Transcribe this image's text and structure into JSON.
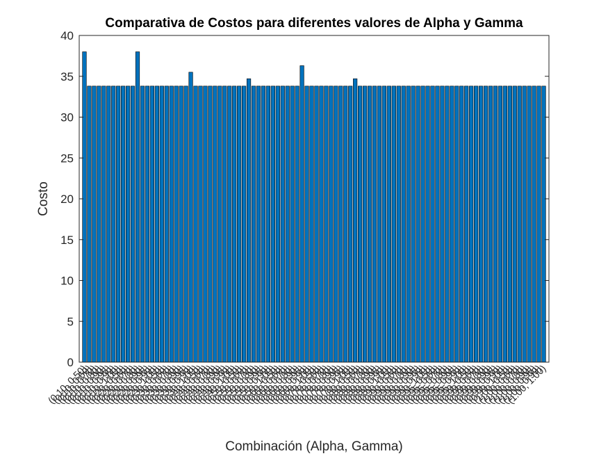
{
  "chart_data": {
    "type": "bar",
    "title": "Comparativa de Costos para diferentes valores de Alpha y Gamma",
    "xlabel": "Combinación (Alpha, Gamma)",
    "ylabel": "Costo",
    "ylim": [
      0,
      40
    ],
    "yticks": [
      0,
      5,
      10,
      15,
      20,
      25,
      30,
      35,
      40
    ],
    "grid": false,
    "bar_color": "#0072BD",
    "bar_edge_color": "#000000",
    "categories": [
      "(0.10, 0.50)",
      "(0.10, 0.60)",
      "(0.10, 0.70)",
      "(0.10, 0.80)",
      "(0.10, 0.90)",
      "(0.10, 0.95)",
      "(0.10, 0.99)",
      "(0.10, 1.00)",
      "(0.20, 0.50)",
      "(0.20, 0.60)",
      "(0.20, 0.70)",
      "(0.20, 0.80)",
      "(0.20, 0.90)",
      "(0.20, 0.95)",
      "(0.20, 0.99)",
      "(0.20, 1.00)",
      "(0.30, 0.50)",
      "(0.30, 0.60)",
      "(0.30, 0.70)",
      "(0.30, 0.80)",
      "(0.30, 0.90)",
      "(0.30, 0.95)",
      "(0.30, 0.99)",
      "(0.30, 1.00)",
      "(0.40, 0.50)",
      "(0.40, 0.60)",
      "(0.40, 0.70)",
      "(0.40, 0.80)",
      "(0.40, 0.90)",
      "(0.40, 0.95)",
      "(0.40, 0.99)",
      "(0.40, 1.00)",
      "(0.50, 0.50)",
      "(0.50, 0.60)",
      "(0.50, 0.70)",
      "(0.50, 0.80)",
      "(0.50, 0.90)",
      "(0.50, 0.95)",
      "(0.50, 0.99)",
      "(0.50, 1.00)",
      "(0.60, 0.50)",
      "(0.60, 0.60)",
      "(0.60, 0.70)",
      "(0.60, 0.80)",
      "(0.60, 0.90)",
      "(0.60, 0.95)",
      "(0.60, 0.99)",
      "(0.60, 1.00)",
      "(0.70, 0.50)",
      "(0.70, 0.60)",
      "(0.70, 0.70)",
      "(0.70, 0.80)",
      "(0.70, 0.90)",
      "(0.70, 0.95)",
      "(0.70, 0.99)",
      "(0.70, 1.00)",
      "(0.80, 0.50)",
      "(0.80, 0.60)",
      "(0.80, 0.70)",
      "(0.80, 0.80)",
      "(0.80, 0.90)",
      "(0.80, 0.95)",
      "(0.80, 0.99)",
      "(0.80, 1.00)",
      "(0.90, 0.50)",
      "(0.90, 0.60)",
      "(0.90, 0.70)",
      "(0.90, 0.80)",
      "(0.90, 0.90)",
      "(0.90, 0.95)",
      "(0.90, 0.99)",
      "(0.90, 1.00)",
      "(0.95, 0.50)",
      "(0.95, 0.60)",
      "(0.95, 0.70)",
      "(0.95, 0.80)",
      "(0.95, 0.90)",
      "(0.95, 0.95)",
      "(0.95, 0.99)",
      "(0.95, 1.00)",
      "(0.99, 0.50)",
      "(0.99, 0.60)",
      "(0.99, 0.70)",
      "(0.99, 0.80)",
      "(0.99, 0.90)",
      "(0.99, 0.95)",
      "(0.99, 0.99)",
      "(0.99, 1.00)",
      "(1.00, 0.50)",
      "(1.00, 0.60)",
      "(1.00, 0.70)",
      "(1.00, 0.80)",
      "(1.00, 0.90)",
      "(1.00, 0.95)",
      "(1.00, 0.99)",
      "(1.00, 1.00)"
    ],
    "values": [
      38.0,
      33.8,
      33.8,
      33.8,
      33.8,
      33.8,
      33.8,
      33.8,
      33.8,
      33.8,
      33.8,
      38.0,
      33.8,
      33.8,
      33.8,
      33.8,
      33.8,
      33.8,
      33.8,
      33.8,
      33.8,
      33.8,
      35.5,
      33.8,
      33.8,
      33.8,
      33.8,
      33.8,
      33.8,
      33.8,
      33.8,
      33.8,
      33.8,
      33.8,
      34.7,
      33.8,
      33.8,
      33.8,
      33.8,
      33.8,
      33.8,
      33.8,
      33.8,
      33.8,
      33.8,
      36.3,
      33.8,
      33.8,
      33.8,
      33.8,
      33.8,
      33.8,
      33.8,
      33.8,
      33.8,
      33.8,
      34.7,
      33.8,
      33.8,
      33.8,
      33.8,
      33.8,
      33.8,
      33.8,
      33.8,
      33.8,
      33.8,
      33.8,
      33.8,
      33.8,
      33.8,
      33.8,
      33.8,
      33.8,
      33.8,
      33.8,
      33.8,
      33.8,
      33.8,
      33.8,
      33.8,
      33.8,
      33.8,
      33.8,
      33.8,
      33.8,
      33.8,
      33.8,
      33.8,
      33.8,
      33.8,
      33.8,
      33.8,
      33.8,
      33.8,
      33.8
    ]
  }
}
